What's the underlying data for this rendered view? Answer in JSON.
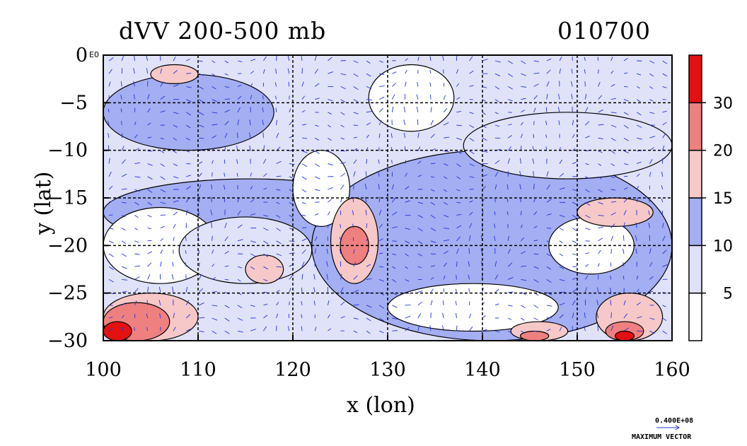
{
  "chart_data": {
    "type": "heatmap",
    "title": "dVV 200-500 mb",
    "subtitle": "010700",
    "xlabel": "x (lon)",
    "ylabel": "y (lat)",
    "x_ticks": [
      100,
      110,
      120,
      130,
      140,
      150,
      160
    ],
    "y_ticks": [
      0,
      -5,
      -10,
      -15,
      -20,
      -25,
      -30
    ],
    "y_top_label_extra": "E0",
    "xlim": [
      100,
      160
    ],
    "ylim": [
      -30,
      0
    ],
    "grid": true,
    "colorbar": {
      "levels": [
        5,
        10,
        15,
        20,
        30
      ],
      "level_labels": [
        "5",
        "10",
        "15",
        "20",
        "30"
      ],
      "colors": [
        "#ffffff",
        "#e0e2fa",
        "#a4aef2",
        "#f6c8c8",
        "#ef8080",
        "#e31111"
      ]
    },
    "regions": [
      {
        "level": 2,
        "lon": [
          100,
          118
        ],
        "lat": [
          -2,
          -10
        ]
      },
      {
        "level": 2,
        "lon": [
          100,
          131
        ],
        "lat": [
          -13,
          -20
        ]
      },
      {
        "level": 2,
        "lon": [
          122,
          160
        ],
        "lat": [
          -10,
          -30
        ]
      },
      {
        "level": 0,
        "lon": [
          120,
          126
        ],
        "lat": [
          -10,
          -18
        ]
      },
      {
        "level": 0,
        "lon": [
          100,
          112
        ],
        "lat": [
          -16,
          -24
        ]
      },
      {
        "level": 1,
        "lon": [
          108,
          122
        ],
        "lat": [
          -17,
          -24
        ]
      },
      {
        "level": 0,
        "lon": [
          128,
          137
        ],
        "lat": [
          -1,
          -8
        ]
      },
      {
        "level": 0,
        "lon": [
          130,
          148
        ],
        "lat": [
          -24,
          -29
        ]
      },
      {
        "level": 0,
        "lon": [
          147,
          156
        ],
        "lat": [
          -17,
          -23
        ]
      },
      {
        "level": 1,
        "lon": [
          138,
          160
        ],
        "lat": [
          -6,
          -13
        ]
      },
      {
        "level": 3,
        "lon": [
          124,
          129
        ],
        "lat": [
          -15,
          -24
        ]
      },
      {
        "level": 4,
        "lon": [
          125,
          128
        ],
        "lat": [
          -18,
          -22
        ]
      },
      {
        "level": 3,
        "lon": [
          105,
          110
        ],
        "lat": [
          -1,
          -3
        ]
      },
      {
        "level": 3,
        "lon": [
          150,
          158
        ],
        "lat": [
          -15,
          -18
        ]
      },
      {
        "level": 3,
        "lon": [
          115,
          119
        ],
        "lat": [
          -21,
          -24
        ]
      },
      {
        "level": 3,
        "lon": [
          100,
          110
        ],
        "lat": [
          -25,
          -30
        ]
      },
      {
        "level": 4,
        "lon": [
          100,
          107
        ],
        "lat": [
          -26,
          -30
        ]
      },
      {
        "level": 5,
        "lon": [
          100,
          103
        ],
        "lat": [
          -28,
          -30
        ]
      },
      {
        "level": 3,
        "lon": [
          152,
          159
        ],
        "lat": [
          -25,
          -30
        ]
      },
      {
        "level": 4,
        "lon": [
          153,
          157
        ],
        "lat": [
          -28,
          -30
        ]
      },
      {
        "level": 5,
        "lon": [
          154,
          156
        ],
        "lat": [
          -29,
          -30
        ]
      },
      {
        "level": 3,
        "lon": [
          143,
          149
        ],
        "lat": [
          -28,
          -30
        ]
      },
      {
        "level": 4,
        "lon": [
          144,
          147
        ],
        "lat": [
          -29,
          -30
        ]
      }
    ]
  },
  "vector_legend": {
    "value": "0.400E+08",
    "caption": "MAXIMUM VECTOR",
    "color": "#2233dd"
  }
}
